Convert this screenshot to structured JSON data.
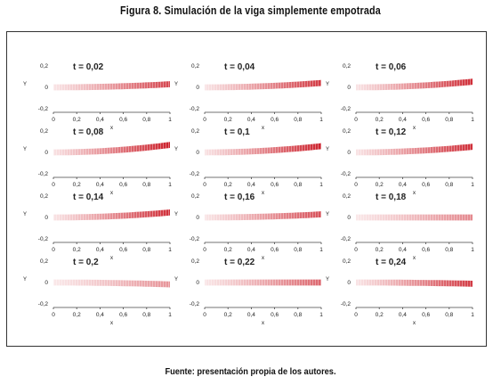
{
  "figure": {
    "title": "Figura 8. Simulación de la viga simplemente empotrada",
    "source": "Fuente: presentación propia de los autores."
  },
  "colors": {
    "beam": "#cc1f2a",
    "axis": "#444444",
    "frame": "#333333"
  },
  "chart_data": {
    "type": "heatmap",
    "xlabel": "x",
    "ylabel": "Y",
    "xlim": [
      0,
      1
    ],
    "ylim": [
      -0.2,
      0.2
    ],
    "x_ticks": [
      "0",
      "0,2",
      "0,4",
      "0,6",
      "0,8",
      "1"
    ],
    "y_ticks": [
      "0,2",
      "0",
      "-0,2"
    ],
    "panels": [
      {
        "label": "t = 0,02",
        "tip_deflection": 0.025,
        "intensity": 0.75
      },
      {
        "label": "t = 0,04",
        "tip_deflection": 0.035,
        "intensity": 0.8
      },
      {
        "label": "t = 0,06",
        "tip_deflection": 0.045,
        "intensity": 0.85
      },
      {
        "label": "t = 0,08",
        "tip_deflection": 0.06,
        "intensity": 0.95
      },
      {
        "label": "t = 0,1",
        "tip_deflection": 0.05,
        "intensity": 0.9
      },
      {
        "label": "t = 0,12",
        "tip_deflection": 0.045,
        "intensity": 0.85
      },
      {
        "label": "t = 0,14",
        "tip_deflection": 0.04,
        "intensity": 0.85
      },
      {
        "label": "t = 0,16",
        "tip_deflection": 0.025,
        "intensity": 0.7
      },
      {
        "label": "t = 0,18",
        "tip_deflection": 0.0,
        "intensity": 0.45
      },
      {
        "label": "t = 0,2",
        "tip_deflection": -0.015,
        "intensity": 0.4
      },
      {
        "label": "t = 0,22",
        "tip_deflection": 0.0,
        "intensity": 0.6
      },
      {
        "label": "t = 0,24",
        "tip_deflection": -0.01,
        "intensity": 0.8
      }
    ]
  }
}
